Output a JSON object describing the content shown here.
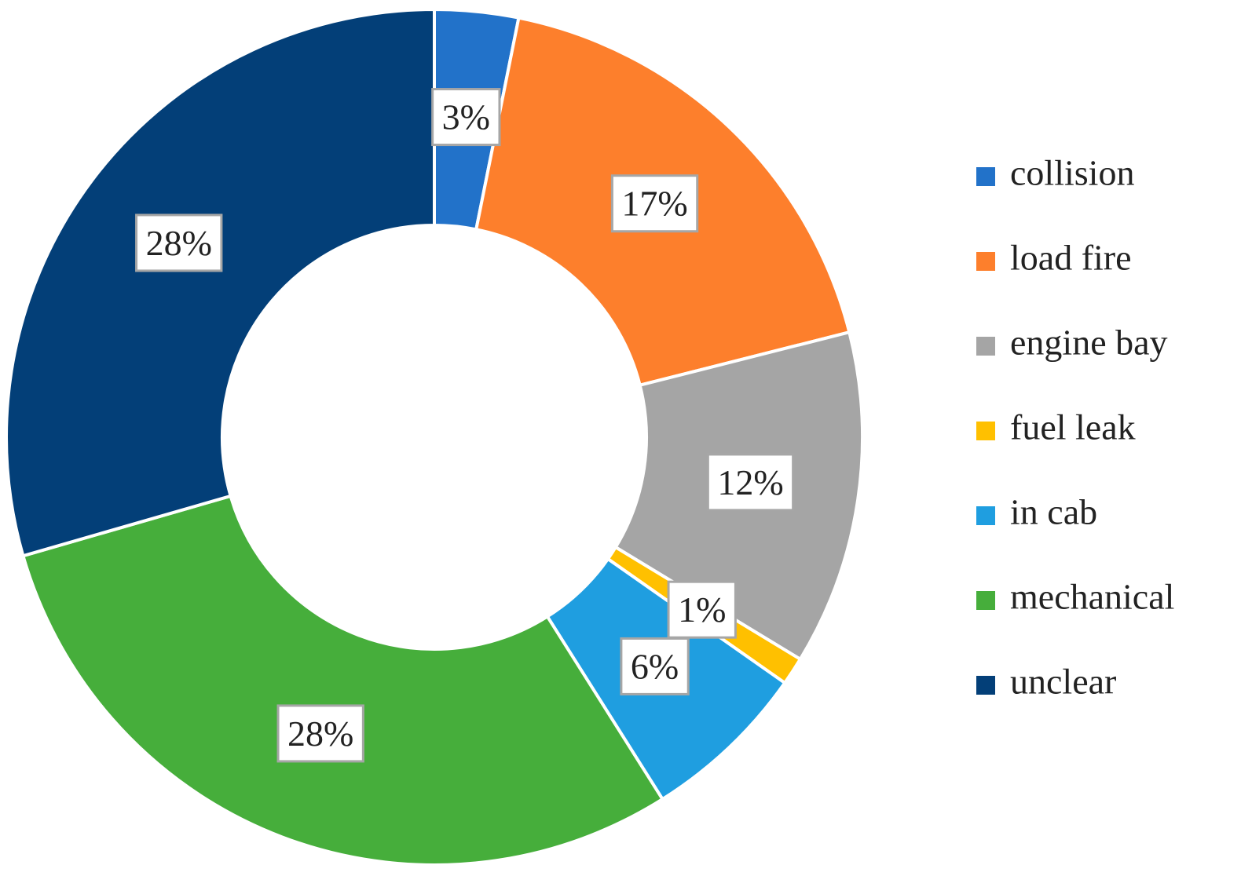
{
  "chart_data": {
    "type": "donut",
    "categories": [
      "collision",
      "load fire",
      "engine bay",
      "fuel leak",
      "in cab",
      "mechanical",
      "unclear"
    ],
    "values": [
      3,
      17,
      12,
      1,
      6,
      28,
      28
    ],
    "value_labels": [
      "3%",
      "17%",
      "12%",
      "1%",
      "6%",
      "28%",
      "28%"
    ],
    "colors": [
      "#2272c9",
      "#fd7f2c",
      "#a5a5a5",
      "#ffc000",
      "#1f9ee0",
      "#46ae3b",
      "#033f78"
    ],
    "legend": true
  }
}
